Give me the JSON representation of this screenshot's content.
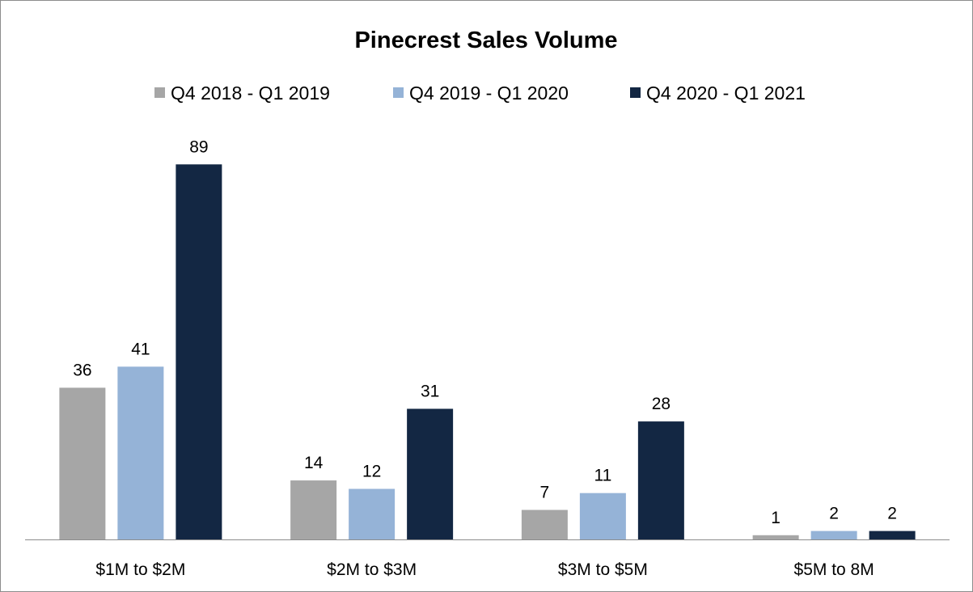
{
  "chart_data": {
    "type": "bar",
    "title": "Pinecrest Sales Volume",
    "xlabel": "",
    "ylabel": "",
    "categories": [
      "$1M to $2M",
      "$2M to $3M",
      "$3M to $5M",
      "$5M to 8M"
    ],
    "series": [
      {
        "name": "Q4 2018 - Q1 2019",
        "color": "#a6a6a6",
        "values": [
          36,
          14,
          7,
          1
        ]
      },
      {
        "name": "Q4 2019 - Q1 2020",
        "color": "#95b3d7",
        "values": [
          41,
          12,
          11,
          2
        ]
      },
      {
        "name": "Q4 2020 - Q1 2021",
        "color": "#132743",
        "values": [
          89,
          31,
          28,
          2
        ]
      }
    ],
    "ylim": [
      0,
      95
    ],
    "grid": false,
    "legend_position": "top",
    "data_labels": true
  }
}
